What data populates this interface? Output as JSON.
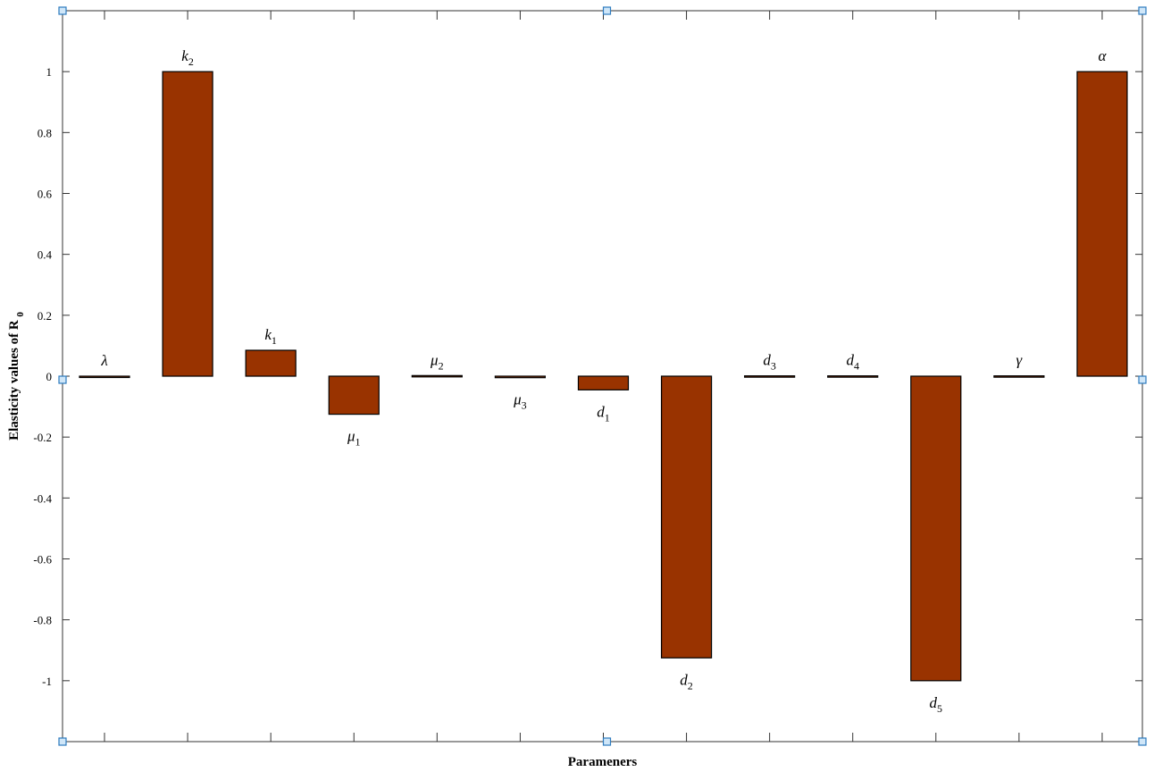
{
  "chart_data": {
    "type": "bar",
    "title": "",
    "xlabel": "Parameners",
    "ylabel_main": "Elasticity values of R",
    "ylabel_sub": "0",
    "ylim": [
      -1.2,
      1.2
    ],
    "yticks": [
      -1,
      -0.8,
      -0.6,
      -0.4,
      -0.2,
      0,
      0.2,
      0.4,
      0.6,
      0.8,
      1
    ],
    "ytick_labels": [
      "-1",
      "-0.8",
      "-0.6",
      "-0.4",
      "-0.2",
      "0",
      "0.2",
      "0.4",
      "0.6",
      "0.8",
      "1"
    ],
    "grid": false,
    "bar_color": "#993300",
    "categories": [
      {
        "symbol": "λ",
        "sub": ""
      },
      {
        "symbol": "k",
        "sub": "2"
      },
      {
        "symbol": "k",
        "sub": "1"
      },
      {
        "symbol": "μ",
        "sub": "1"
      },
      {
        "symbol": "μ",
        "sub": "2"
      },
      {
        "symbol": "μ",
        "sub": "3"
      },
      {
        "symbol": "d",
        "sub": "1"
      },
      {
        "symbol": "d",
        "sub": "2"
      },
      {
        "symbol": "d",
        "sub": "3"
      },
      {
        "symbol": "d",
        "sub": "4"
      },
      {
        "symbol": "d",
        "sub": "5"
      },
      {
        "symbol": "γ",
        "sub": ""
      },
      {
        "symbol": "α",
        "sub": ""
      }
    ],
    "values": [
      0,
      1,
      0.085,
      -0.125,
      0.002,
      -0.005,
      -0.045,
      -0.925,
      0.001,
      0.001,
      -1,
      0.001,
      1
    ]
  }
}
